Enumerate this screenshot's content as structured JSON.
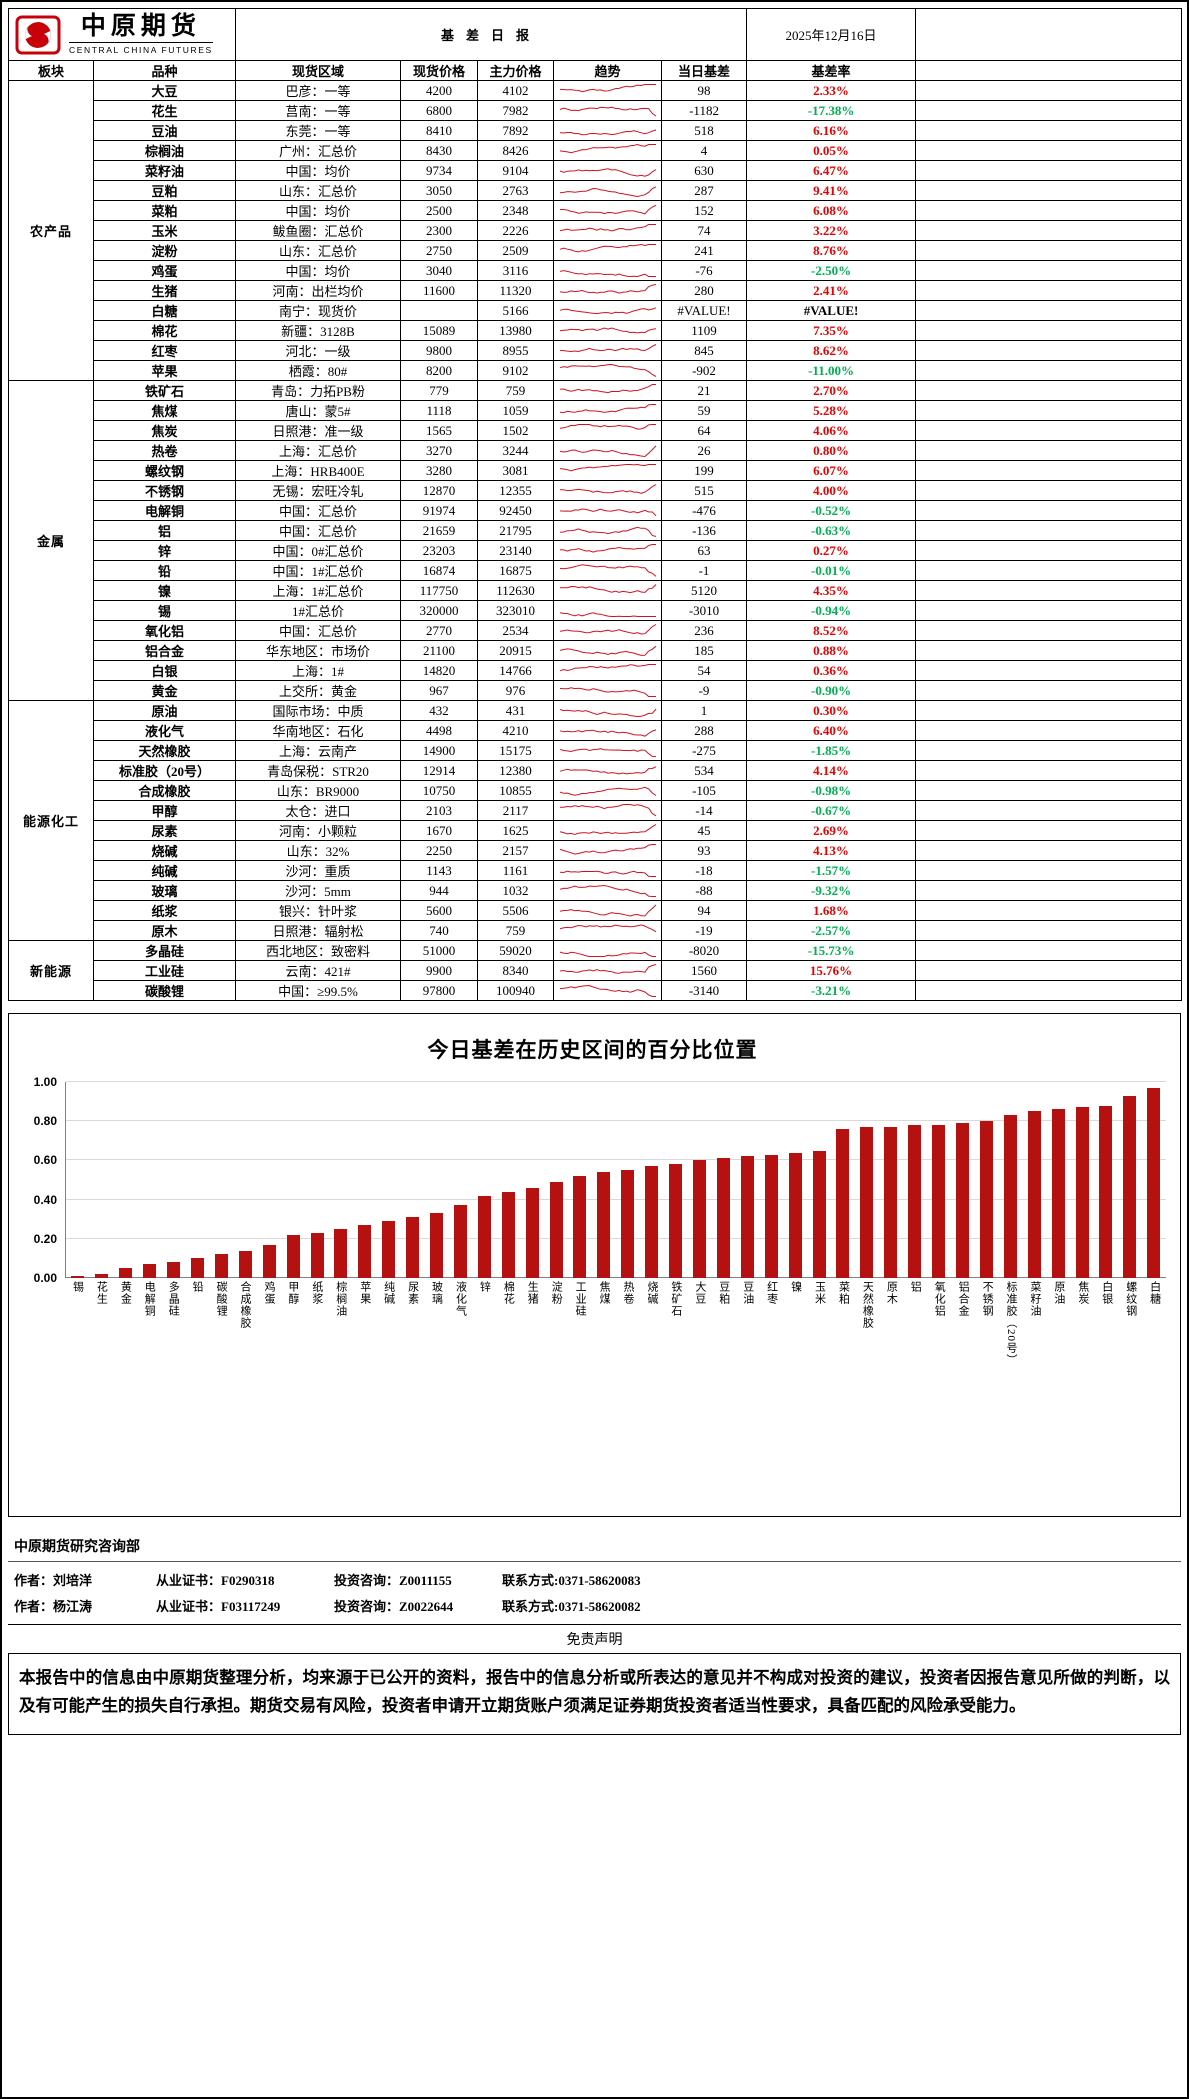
{
  "meta": {
    "brand_red": "#c8000a",
    "positive_color": "#e60000",
    "negative_color": "#00b050",
    "sparkline_color": "#cf1322"
  },
  "header": {
    "logo_title": "中原期货",
    "logo_subtitle": "CENTRAL CHINA FUTURES",
    "report_title": "基差日报",
    "report_date": "2025年12月16日"
  },
  "table": {
    "columns": [
      "板块",
      "品种",
      "现货区域",
      "现货价格",
      "主力价格",
      "趋势",
      "当日基差",
      "基差率"
    ],
    "sections": [
      {
        "name": "农产品",
        "rows": [
          {
            "variety": "大豆",
            "region": "巴彦：一等",
            "spot": "4200",
            "main": "4102",
            "basis": "98",
            "rate": "2.33%",
            "dir": "pos"
          },
          {
            "variety": "花生",
            "region": "莒南：一等",
            "spot": "6800",
            "main": "7982",
            "basis": "-1182",
            "rate": "-17.38%",
            "dir": "neg"
          },
          {
            "variety": "豆油",
            "region": "东莞：一等",
            "spot": "8410",
            "main": "7892",
            "basis": "518",
            "rate": "6.16%",
            "dir": "pos"
          },
          {
            "variety": "棕榈油",
            "region": "广州：汇总价",
            "spot": "8430",
            "main": "8426",
            "basis": "4",
            "rate": "0.05%",
            "dir": "pos"
          },
          {
            "variety": "菜籽油",
            "region": "中国：均价",
            "spot": "9734",
            "main": "9104",
            "basis": "630",
            "rate": "6.47%",
            "dir": "pos"
          },
          {
            "variety": "豆粕",
            "region": "山东：汇总价",
            "spot": "3050",
            "main": "2763",
            "basis": "287",
            "rate": "9.41%",
            "dir": "pos"
          },
          {
            "variety": "菜粕",
            "region": "中国：均价",
            "spot": "2500",
            "main": "2348",
            "basis": "152",
            "rate": "6.08%",
            "dir": "pos"
          },
          {
            "variety": "玉米",
            "region": "鲅鱼圈：汇总价",
            "spot": "2300",
            "main": "2226",
            "basis": "74",
            "rate": "3.22%",
            "dir": "pos"
          },
          {
            "variety": "淀粉",
            "region": "山东：汇总价",
            "spot": "2750",
            "main": "2509",
            "basis": "241",
            "rate": "8.76%",
            "dir": "pos"
          },
          {
            "variety": "鸡蛋",
            "region": "中国：均价",
            "spot": "3040",
            "main": "3116",
            "basis": "-76",
            "rate": "-2.50%",
            "dir": "neg"
          },
          {
            "variety": "生猪",
            "region": "河南：出栏均价",
            "spot": "11600",
            "main": "11320",
            "basis": "280",
            "rate": "2.41%",
            "dir": "pos"
          },
          {
            "variety": "白糖",
            "region": "南宁：现货价",
            "spot": "",
            "main": "5166",
            "basis": "#VALUE!",
            "rate": "#VALUE!",
            "dir": "err"
          },
          {
            "variety": "棉花",
            "region": "新疆：3128B",
            "spot": "15089",
            "main": "13980",
            "basis": "1109",
            "rate": "7.35%",
            "dir": "pos"
          },
          {
            "variety": "红枣",
            "region": "河北：一级",
            "spot": "9800",
            "main": "8955",
            "basis": "845",
            "rate": "8.62%",
            "dir": "pos"
          },
          {
            "variety": "苹果",
            "region": "栖霞：80#",
            "spot": "8200",
            "main": "9102",
            "basis": "-902",
            "rate": "-11.00%",
            "dir": "neg"
          }
        ]
      },
      {
        "name": "金属",
        "rows": [
          {
            "variety": "铁矿石",
            "region": "青岛：力拓PB粉",
            "spot": "779",
            "main": "759",
            "basis": "21",
            "rate": "2.70%",
            "dir": "pos"
          },
          {
            "variety": "焦煤",
            "region": "唐山：蒙5#",
            "spot": "1118",
            "main": "1059",
            "basis": "59",
            "rate": "5.28%",
            "dir": "pos"
          },
          {
            "variety": "焦炭",
            "region": "日照港：准一级",
            "spot": "1565",
            "main": "1502",
            "basis": "64",
            "rate": "4.06%",
            "dir": "pos"
          },
          {
            "variety": "热卷",
            "region": "上海：汇总价",
            "spot": "3270",
            "main": "3244",
            "basis": "26",
            "rate": "0.80%",
            "dir": "pos"
          },
          {
            "variety": "螺纹钢",
            "region": "上海：HRB400E",
            "spot": "3280",
            "main": "3081",
            "basis": "199",
            "rate": "6.07%",
            "dir": "pos"
          },
          {
            "variety": "不锈钢",
            "region": "无锡：宏旺冷轧",
            "spot": "12870",
            "main": "12355",
            "basis": "515",
            "rate": "4.00%",
            "dir": "pos"
          },
          {
            "variety": "电解铜",
            "region": "中国：汇总价",
            "spot": "91974",
            "main": "92450",
            "basis": "-476",
            "rate": "-0.52%",
            "dir": "neg"
          },
          {
            "variety": "铝",
            "region": "中国：汇总价",
            "spot": "21659",
            "main": "21795",
            "basis": "-136",
            "rate": "-0.63%",
            "dir": "neg"
          },
          {
            "variety": "锌",
            "region": "中国：0#汇总价",
            "spot": "23203",
            "main": "23140",
            "basis": "63",
            "rate": "0.27%",
            "dir": "pos"
          },
          {
            "variety": "铅",
            "region": "中国：1#汇总价",
            "spot": "16874",
            "main": "16875",
            "basis": "-1",
            "rate": "-0.01%",
            "dir": "neg"
          },
          {
            "variety": "镍",
            "region": "上海：1#汇总价",
            "spot": "117750",
            "main": "112630",
            "basis": "5120",
            "rate": "4.35%",
            "dir": "pos"
          },
          {
            "variety": "锡",
            "region": "1#汇总价",
            "spot": "320000",
            "main": "323010",
            "basis": "-3010",
            "rate": "-0.94%",
            "dir": "neg"
          },
          {
            "variety": "氧化铝",
            "region": "中国：汇总价",
            "spot": "2770",
            "main": "2534",
            "basis": "236",
            "rate": "8.52%",
            "dir": "pos"
          },
          {
            "variety": "铝合金",
            "region": "华东地区：市场价",
            "spot": "21100",
            "main": "20915",
            "basis": "185",
            "rate": "0.88%",
            "dir": "pos"
          },
          {
            "variety": "白银",
            "region": "上海：1#",
            "spot": "14820",
            "main": "14766",
            "basis": "54",
            "rate": "0.36%",
            "dir": "pos"
          },
          {
            "variety": "黄金",
            "region": "上交所：黄金",
            "spot": "967",
            "main": "976",
            "basis": "-9",
            "rate": "-0.90%",
            "dir": "neg"
          }
        ]
      },
      {
        "name": "能源化工",
        "rows": [
          {
            "variety": "原油",
            "region": "国际市场：中质",
            "spot": "432",
            "main": "431",
            "basis": "1",
            "rate": "0.30%",
            "dir": "pos"
          },
          {
            "variety": "液化气",
            "region": "华南地区：石化",
            "spot": "4498",
            "main": "4210",
            "basis": "288",
            "rate": "6.40%",
            "dir": "pos"
          },
          {
            "variety": "天然橡胶",
            "region": "上海：云南产",
            "spot": "14900",
            "main": "15175",
            "basis": "-275",
            "rate": "-1.85%",
            "dir": "neg"
          },
          {
            "variety": "标准胶（20号）",
            "region": "青岛保税：STR20",
            "spot": "12914",
            "main": "12380",
            "basis": "534",
            "rate": "4.14%",
            "dir": "pos"
          },
          {
            "variety": "合成橡胶",
            "region": "山东：BR9000",
            "spot": "10750",
            "main": "10855",
            "basis": "-105",
            "rate": "-0.98%",
            "dir": "neg"
          },
          {
            "variety": "甲醇",
            "region": "太仓：进口",
            "spot": "2103",
            "main": "2117",
            "basis": "-14",
            "rate": "-0.67%",
            "dir": "neg"
          },
          {
            "variety": "尿素",
            "region": "河南：小颗粒",
            "spot": "1670",
            "main": "1625",
            "basis": "45",
            "rate": "2.69%",
            "dir": "pos"
          },
          {
            "variety": "烧碱",
            "region": "山东：32%",
            "spot": "2250",
            "main": "2157",
            "basis": "93",
            "rate": "4.13%",
            "dir": "pos"
          },
          {
            "variety": "纯碱",
            "region": "沙河：重质",
            "spot": "1143",
            "main": "1161",
            "basis": "-18",
            "rate": "-1.57%",
            "dir": "neg"
          },
          {
            "variety": "玻璃",
            "region": "沙河：5mm",
            "spot": "944",
            "main": "1032",
            "basis": "-88",
            "rate": "-9.32%",
            "dir": "neg"
          },
          {
            "variety": "纸浆",
            "region": "银兴：针叶浆",
            "spot": "5600",
            "main": "5506",
            "basis": "94",
            "rate": "1.68%",
            "dir": "pos"
          },
          {
            "variety": "原木",
            "region": "日照港：辐射松",
            "spot": "740",
            "main": "759",
            "basis": "-19",
            "rate": "-2.57%",
            "dir": "neg"
          }
        ]
      },
      {
        "name": "新能源",
        "rows": [
          {
            "variety": "多晶硅",
            "region": "西北地区：致密料",
            "spot": "51000",
            "main": "59020",
            "basis": "-8020",
            "rate": "-15.73%",
            "dir": "neg"
          },
          {
            "variety": "工业硅",
            "region": "云南：421#",
            "spot": "9900",
            "main": "8340",
            "basis": "1560",
            "rate": "15.76%",
            "dir": "pos"
          },
          {
            "variety": "碳酸锂",
            "region": "中国：≥99.5%",
            "spot": "97800",
            "main": "100940",
            "basis": "-3140",
            "rate": "-3.21%",
            "dir": "neg"
          }
        ]
      }
    ]
  },
  "chart_data": {
    "type": "bar",
    "title": "今日基差在历史区间的百分比位置",
    "categories": [
      "锡",
      "花生",
      "黄金",
      "电解铜",
      "多晶硅",
      "铅",
      "碳酸锂",
      "合成橡胶",
      "鸡蛋",
      "甲醇",
      "纸浆",
      "棕榈油",
      "苹果",
      "纯碱",
      "尿素",
      "玻璃",
      "液化气",
      "锌",
      "棉花",
      "生猪",
      "淀粉",
      "工业硅",
      "焦煤",
      "热卷",
      "烧碱",
      "铁矿石",
      "大豆",
      "豆粕",
      "豆油",
      "红枣",
      "镍",
      "玉米",
      "菜粕",
      "天然橡胶",
      "原木",
      "铝",
      "氧化铝",
      "铝合金",
      "不锈钢",
      "标准胶（20号）",
      "菜籽油",
      "原油",
      "焦炭",
      "白银",
      "螺纹钢",
      "白糖"
    ],
    "values": [
      0.01,
      0.02,
      0.05,
      0.07,
      0.08,
      0.1,
      0.12,
      0.14,
      0.17,
      0.22,
      0.23,
      0.25,
      0.27,
      0.29,
      0.31,
      0.33,
      0.37,
      0.42,
      0.44,
      0.46,
      0.49,
      0.52,
      0.54,
      0.55,
      0.57,
      0.58,
      0.6,
      0.61,
      0.62,
      0.63,
      0.64,
      0.65,
      0.76,
      0.77,
      0.77,
      0.78,
      0.78,
      0.79,
      0.8,
      0.83,
      0.85,
      0.86,
      0.87,
      0.88,
      0.93,
      0.97
    ],
    "xlabel": "",
    "ylabel": "",
    "ylim": [
      0,
      1.0
    ],
    "yticks": [
      0.0,
      0.2,
      0.4,
      0.6,
      0.8,
      1.0
    ],
    "grid": true,
    "legend": "none",
    "bar_color": "#b51111"
  },
  "footer": {
    "department": "中原期货研究咨询部",
    "authors": [
      {
        "author": "作者：刘培洋",
        "license": "从业证书：F0290318",
        "advisory": "投资咨询：Z0011155",
        "contact": "联系方式:0371-58620083"
      },
      {
        "author": "作者：杨江涛",
        "license": "从业证书：F03117249",
        "advisory": "投资咨询：Z0022644",
        "contact": "联系方式:0371-58620082"
      }
    ],
    "disclaimer_title": "免责声明",
    "disclaimer_text": "本报告中的信息由中原期货整理分析，均来源于已公开的资料，报告中的信息分析或所表达的意见并不构成对投资的建议，投资者因报告意见所做的判断，以及有可能产生的损失自行承担。期货交易有风险，投资者申请开立期货账户须满足证券期货投资者适当性要求，具备匹配的风险承受能力。"
  }
}
